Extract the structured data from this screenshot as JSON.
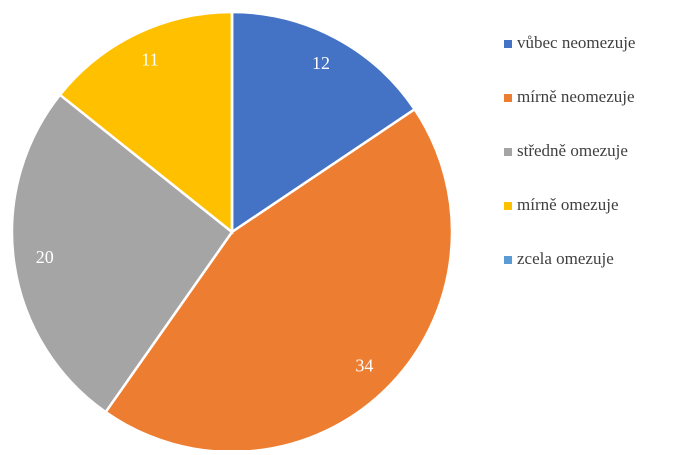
{
  "chart_data": {
    "type": "pie",
    "categories": [
      "vůbec neomezuje",
      "mírně neomezuje",
      "středně omezuje",
      "mírně omezuje",
      "zcela omezuje"
    ],
    "values": [
      12,
      34,
      20,
      11,
      0
    ],
    "colors": [
      "#4472c4",
      "#ed7d31",
      "#a5a5a5",
      "#ffc000",
      "#5b9bd5"
    ],
    "legend": "right"
  }
}
